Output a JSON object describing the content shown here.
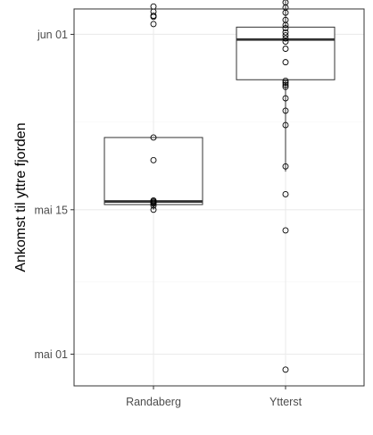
{
  "chart_data": {
    "type": "boxplot",
    "title": "",
    "xlabel": "",
    "ylabel": "Ankomst til yttre fjorden",
    "categories": [
      "Randaberg",
      "Ytterst"
    ],
    "y_ticks": [
      {
        "label": "mai 01",
        "day": 0
      },
      {
        "label": "mai 15",
        "day": 14
      },
      {
        "label": "jun 01",
        "day": 31
      }
    ],
    "ylim_days": [
      -3.0,
      36.0
    ],
    "grid": true,
    "colors": {
      "panel_border": "#333333",
      "grid_major": "#ebebeb",
      "grid_minor": "#f5f5f5",
      "box": "#333333",
      "points": "#000000"
    },
    "boxes": [
      {
        "category": "Randaberg",
        "lower_whisker": 14.0,
        "q1": 14.5,
        "median": 14.8,
        "q3": 21.0,
        "upper_whisker": 21.0
      },
      {
        "category": "Ytterst",
        "lower_whisker": 17.7,
        "q1": 26.6,
        "median": 30.5,
        "q3": 31.7,
        "upper_whisker": 34.8
      }
    ],
    "points": [
      {
        "category": "Randaberg",
        "values": [
          14.0,
          14.4,
          14.6,
          14.7,
          14.8,
          14.9,
          18.8,
          21.0,
          33.7,
          32.0,
          32.7,
          33.2,
          32.8,
          34.8,
          34.9,
          34.9
        ]
      },
      {
        "category": "Ytterst",
        "values": [
          -1.5,
          12.0,
          15.5,
          18.2,
          22.2,
          23.6,
          24.8,
          25.9,
          26.1,
          26.3,
          26.5,
          28.3,
          29.6,
          30.3,
          30.6,
          30.9,
          31.2,
          31.6,
          31.9,
          32.4,
          33.1,
          33.6,
          34.1,
          34.8,
          35.2,
          40.1,
          40.3,
          37.3,
          37.3,
          37.3,
          37.3,
          37.3,
          37.3,
          37.3,
          37.4,
          37.3,
          37.3,
          37.3
        ]
      }
    ]
  }
}
